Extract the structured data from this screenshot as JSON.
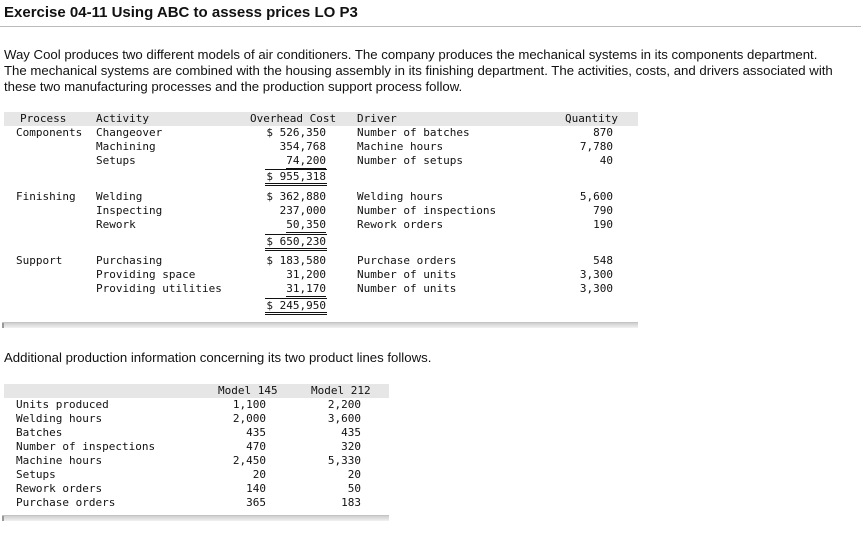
{
  "title": "Exercise 04-11 Using ABC to assess prices LO P3",
  "intro": "Way Cool produces two different models of air conditioners. The company produces the mechanical systems in its components department. The mechanical systems are combined with the housing assembly in its finishing department. The activities, costs, and drivers associated with these two manufacturing processes and the production support process follow.",
  "activities_table": {
    "headers": {
      "process": "Process",
      "activity": "Activity",
      "overhead": "Overhead Cost",
      "driver": "Driver",
      "quantity": "Quantity"
    },
    "groups": [
      {
        "process": "Components",
        "rows": [
          {
            "activity": "Changeover",
            "overhead": "$ 526,350",
            "driver": "Number of batches",
            "quantity": "870"
          },
          {
            "activity": "Machining",
            "overhead": "354,768",
            "driver": "Machine hours",
            "quantity": "7,780"
          },
          {
            "activity": "Setups",
            "overhead": "74,200",
            "driver": "Number of setups",
            "quantity": "40"
          }
        ],
        "total": "$ 955,318"
      },
      {
        "process": "Finishing",
        "rows": [
          {
            "activity": "Welding",
            "overhead": "$ 362,880",
            "driver": "Welding hours",
            "quantity": "5,600"
          },
          {
            "activity": "Inspecting",
            "overhead": "237,000",
            "driver": "Number of inspections",
            "quantity": "790"
          },
          {
            "activity": "Rework",
            "overhead": "50,350",
            "driver": "Rework orders",
            "quantity": "190"
          }
        ],
        "total": "$ 650,230"
      },
      {
        "process": "Support",
        "rows": [
          {
            "activity": "Purchasing",
            "overhead": "$ 183,580",
            "driver": "Purchase orders",
            "quantity": "548"
          },
          {
            "activity": "Providing space",
            "overhead": "31,200",
            "driver": "Number of units",
            "quantity": "3,300"
          },
          {
            "activity": "Providing utilities",
            "overhead": "31,170",
            "driver": "Number of units",
            "quantity": "3,300"
          }
        ],
        "total": "$ 245,950"
      }
    ]
  },
  "between_text": "Additional production information concerning its two product lines follows.",
  "production_table": {
    "headers": {
      "m145": "Model 145",
      "m212": "Model 212"
    },
    "rows": [
      {
        "label": "Units produced",
        "m145": "1,100",
        "m212": "2,200"
      },
      {
        "label": "Welding hours",
        "m145": "2,000",
        "m212": "3,600"
      },
      {
        "label": "Batches",
        "m145": "435",
        "m212": "435"
      },
      {
        "label": "Number of inspections",
        "m145": "470",
        "m212": "320"
      },
      {
        "label": "Machine hours",
        "m145": "2,450",
        "m212": "5,330"
      },
      {
        "label": "Setups",
        "m145": "20",
        "m212": "20"
      },
      {
        "label": "Rework orders",
        "m145": "140",
        "m212": "50"
      },
      {
        "label": "Purchase orders",
        "m145": "365",
        "m212": "183"
      }
    ]
  }
}
